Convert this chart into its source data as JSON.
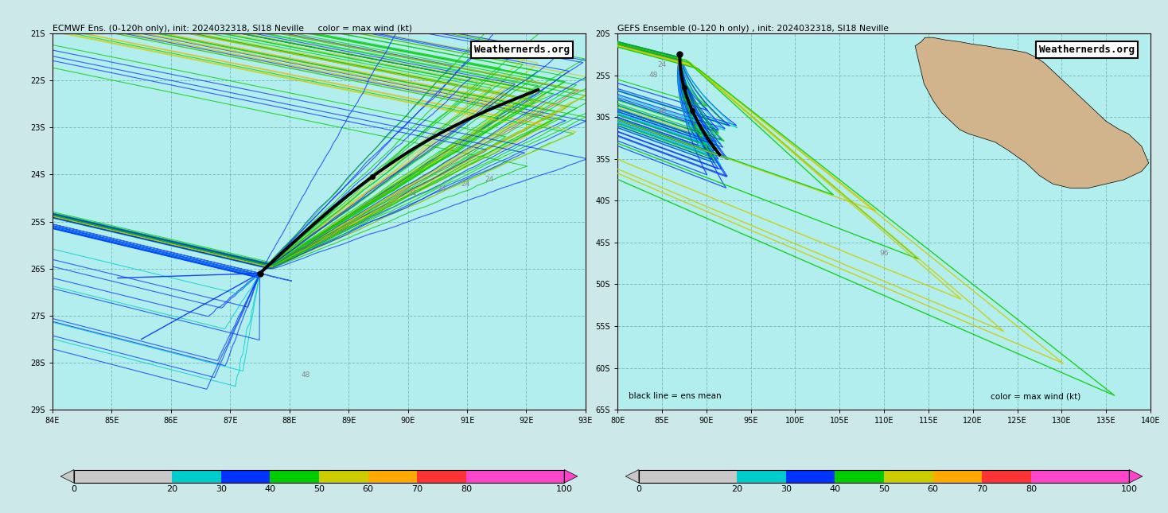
{
  "title_left": "ECMWF Ens. (0-120h only), init: 2024032318, SI18 Neville     color = max wind (kt)",
  "title_right": "GEFS Ensemble (0-120 h only) , init: 2024032318, SI18 Neville",
  "watermark": "Weathernerds.org",
  "bg_color": "#b2eeee",
  "land_color": "#d2b48c",
  "grid_color": "#7fbfbf",
  "colorbar_colors": [
    "#c8c8c8",
    "#00cccc",
    "#0033ff",
    "#00cc00",
    "#cccc00",
    "#ffaa00",
    "#ff3333",
    "#ff44cc"
  ],
  "wind_speed_bins": [
    0,
    20,
    30,
    40,
    50,
    60,
    70,
    80,
    100
  ],
  "left_xlim": [
    84,
    93
  ],
  "left_ylim": [
    -29,
    -21
  ],
  "left_xticks": [
    84,
    85,
    86,
    87,
    88,
    89,
    90,
    91,
    92,
    93
  ],
  "left_yticks": [
    -21,
    -22,
    -23,
    -24,
    -25,
    -26,
    -27,
    -28,
    -29
  ],
  "right_xlim": [
    80,
    140
  ],
  "right_ylim": [
    -65,
    -20
  ],
  "right_xticks": [
    80,
    85,
    90,
    95,
    100,
    105,
    110,
    115,
    120,
    125,
    130,
    135,
    140
  ],
  "right_yticks": [
    -20,
    -25,
    -30,
    -35,
    -40,
    -45,
    -50,
    -55,
    -60,
    -65
  ],
  "bottom_label_right": "black line = ens mean",
  "bottom_note_right": "color = max wind (kt)"
}
